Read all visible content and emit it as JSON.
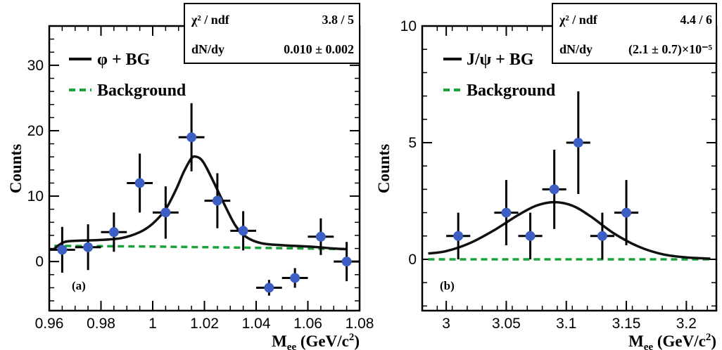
{
  "chart_data": [
    {
      "type": "scatter",
      "panel_label": "(a)",
      "xlabel": "M",
      "xlabel_sub": "ee",
      "xlabel_unit": " (GeV/c",
      "xlabel_unit_sup": "2",
      "xlabel_unit_end": ")",
      "ylabel": "Counts",
      "xlim": [
        0.96,
        1.08
      ],
      "ylim": [
        -7.5,
        36
      ],
      "x_ticks": [
        0.96,
        0.98,
        1.0,
        1.02,
        1.04,
        1.06,
        1.08
      ],
      "x_tick_labels": [
        "0.96",
        "0.98",
        "1",
        "1.02",
        "1.04",
        "1.06",
        "1.08"
      ],
      "y_ticks": [
        0,
        10,
        20,
        30
      ],
      "y_tick_labels": [
        "0",
        "10",
        "20",
        "30"
      ],
      "legend": {
        "placement": "top-left",
        "entries": [
          {
            "label": "φ + BG",
            "style": "solid",
            "color": "#111111"
          },
          {
            "label": "Background",
            "style": "dashed",
            "color": "#1aa33a"
          }
        ]
      },
      "stats_box": {
        "row1_label": "χ² / ndf",
        "row1_value": "3.8 / 5",
        "row2_label": "dN/dy",
        "row2_value": "0.010 ± 0.002"
      },
      "series": [
        {
          "name": "data",
          "color": "#3d5ec2",
          "points": [
            {
              "x": 0.965,
              "y": 1.8,
              "err": 3.5
            },
            {
              "x": 0.975,
              "y": 2.2,
              "err": 3.5
            },
            {
              "x": 0.985,
              "y": 4.5,
              "err": 3.0
            },
            {
              "x": 0.995,
              "y": 12.0,
              "err": 4.5
            },
            {
              "x": 1.005,
              "y": 7.5,
              "err": 4.0
            },
            {
              "x": 1.015,
              "y": 19.0,
              "err": 5.2
            },
            {
              "x": 1.025,
              "y": 9.3,
              "err": 4.2
            },
            {
              "x": 1.035,
              "y": 4.7,
              "err": 3.0
            },
            {
              "x": 1.045,
              "y": -4.0,
              "err": 1.2
            },
            {
              "x": 1.055,
              "y": -2.5,
              "err": 1.5
            },
            {
              "x": 1.065,
              "y": 3.8,
              "err": 2.8
            },
            {
              "x": 1.075,
              "y": 0.0,
              "err": 3.0
            }
          ]
        },
        {
          "name": "φ + BG",
          "color": "#111111",
          "x": [
            0.962,
            0.966,
            0.972,
            0.98,
            0.988,
            0.995,
            1.0,
            1.005,
            1.009,
            1.012,
            1.015,
            1.017,
            1.019,
            1.021,
            1.024,
            1.028,
            1.032,
            1.036,
            1.042,
            1.05,
            1.06,
            1.07,
            1.075
          ],
          "y": [
            2.0,
            3.0,
            3.2,
            3.3,
            3.6,
            4.5,
            5.8,
            8.0,
            11.0,
            13.7,
            15.8,
            16.0,
            15.5,
            14.2,
            11.8,
            8.5,
            5.5,
            3.8,
            2.8,
            2.5,
            2.3,
            2.0,
            1.9
          ]
        },
        {
          "name": "Background",
          "color": "#1aa33a",
          "x": [
            0.962,
            0.98,
            1.0,
            1.02,
            1.04,
            1.06,
            1.075
          ],
          "y": [
            2.4,
            2.35,
            2.3,
            2.2,
            2.1,
            2.0,
            1.9
          ]
        }
      ]
    },
    {
      "type": "scatter",
      "panel_label": "(b)",
      "xlabel": "M",
      "xlabel_sub": "ee",
      "xlabel_unit": " (GeV/c",
      "xlabel_unit_sup": "2",
      "xlabel_unit_end": ")",
      "ylabel": "Counts",
      "xlim": [
        2.98,
        3.225
      ],
      "ylim": [
        -2.2,
        10
      ],
      "x_ticks": [
        3.0,
        3.05,
        3.1,
        3.15,
        3.2
      ],
      "x_tick_labels": [
        "3",
        "3.05",
        "3.1",
        "3.15",
        "3.2"
      ],
      "y_ticks": [
        0,
        5,
        10
      ],
      "y_tick_labels": [
        "0",
        "5",
        "10"
      ],
      "legend": {
        "placement": "top-left",
        "entries": [
          {
            "label": "J/ψ + BG",
            "style": "solid",
            "color": "#111111"
          },
          {
            "label": "Background",
            "style": "dashed",
            "color": "#1aa33a"
          }
        ]
      },
      "stats_box": {
        "row1_label": "χ² / ndf",
        "row1_value": "4.4 / 6",
        "row2_label": "dN/dy",
        "row2_value": "(2.1 ± 0.7)×10⁻⁵"
      },
      "series": [
        {
          "name": "data",
          "color": "#3d5ec2",
          "points": [
            {
              "x": 3.01,
              "y": 1.0,
              "err": 1.0
            },
            {
              "x": 3.05,
              "y": 2.0,
              "err": 1.4
            },
            {
              "x": 3.07,
              "y": 1.0,
              "err": 1.0
            },
            {
              "x": 3.09,
              "y": 3.0,
              "err": 1.7
            },
            {
              "x": 3.11,
              "y": 5.0,
              "err": 2.2
            },
            {
              "x": 3.13,
              "y": 1.0,
              "err": 1.0
            },
            {
              "x": 3.15,
              "y": 2.0,
              "err": 1.4
            }
          ]
        },
        {
          "name": "J/ψ + BG",
          "color": "#111111",
          "x": [
            2.985,
            3.0,
            3.02,
            3.04,
            3.06,
            3.075,
            3.09,
            3.105,
            3.12,
            3.14,
            3.16,
            3.18,
            3.2,
            3.22
          ],
          "y": [
            0.25,
            0.35,
            0.7,
            1.25,
            1.9,
            2.3,
            2.45,
            2.3,
            1.85,
            1.1,
            0.55,
            0.22,
            0.08,
            0.03
          ]
        },
        {
          "name": "Background",
          "color": "#1aa33a",
          "x": [
            2.985,
            3.22
          ],
          "y": [
            0.0,
            0.0
          ]
        }
      ]
    }
  ]
}
